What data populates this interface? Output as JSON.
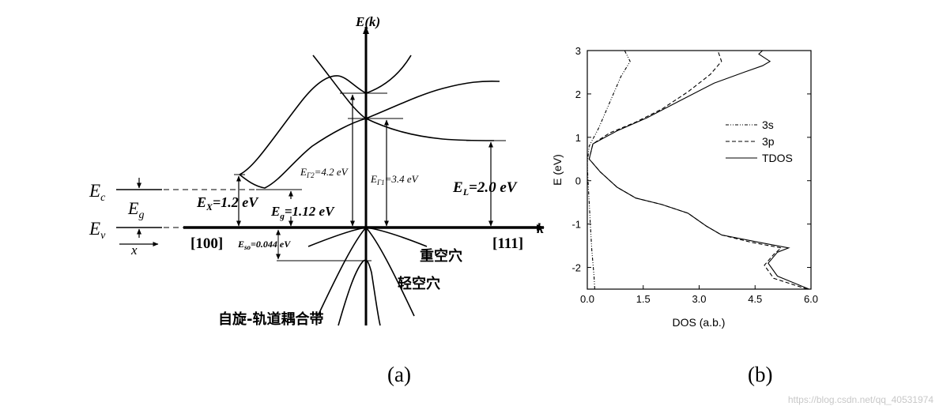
{
  "panel_a": {
    "caption": "(a)",
    "axis_y_label": "E(k)",
    "axis_x_label": "k",
    "dir_left": "[100]",
    "dir_right": "[111]",
    "ec": "E",
    "ec_sub": "c",
    "ev": "E",
    "ev_sub": "v",
    "eg": "E",
    "eg_sub": "g",
    "x_arrow_label": "x",
    "ex_label": "E",
    "ex_sub": "X",
    "ex_val": "=1.2 eV",
    "eg2_label": "E",
    "eg2_sub": "g",
    "eg2_val": "=1.12 eV",
    "eso_label": "E",
    "eso_sub": "so",
    "eso_val": "=0.044 eV",
    "eg2val_label": "E",
    "eg2val_sub": "Γ2",
    "eg2val_val": "=4.2 eV",
    "eg1_label": "E",
    "eg1_sub": "Γ1",
    "eg1_val": "=3.4 eV",
    "el_label": "E",
    "el_sub": "L",
    "el_val": "=2.0 eV",
    "heavy_hole": "重空穴",
    "light_hole": "轻空穴",
    "split_off": "自旋-轨道耦合带"
  },
  "panel_b": {
    "caption": "(b)",
    "chart_data": {
      "type": "line",
      "xlabel": "DOS (a.b.)",
      "ylabel": "E (eV)",
      "xlim": [
        0,
        6
      ],
      "ylim": [
        -2.5,
        3
      ],
      "xticks": [
        "0.0",
        "1.5",
        "3.0",
        "4.5",
        "6.0"
      ],
      "yticks": [
        "3",
        "2",
        "1",
        "0",
        "-1",
        "-2"
      ],
      "legend_position": "right",
      "series": [
        {
          "name": "3s",
          "style": "dash-dot-dot",
          "points": [
            [
              0.2,
              -2.5
            ],
            [
              0.18,
              -2.2
            ],
            [
              0.12,
              -1.6
            ],
            [
              0.08,
              -1.0
            ],
            [
              0.05,
              -0.5
            ],
            [
              0.02,
              0.0
            ],
            [
              0.0,
              0.4
            ],
            [
              0.05,
              0.8
            ],
            [
              0.3,
              1.2
            ],
            [
              0.6,
              1.8
            ],
            [
              0.9,
              2.4
            ],
            [
              1.15,
              2.75
            ],
            [
              1.0,
              3.0
            ]
          ]
        },
        {
          "name": "3p",
          "style": "dashed",
          "points": [
            [
              5.9,
              -2.5
            ],
            [
              5.0,
              -2.25
            ],
            [
              4.75,
              -1.95
            ],
            [
              5.0,
              -1.7
            ],
            [
              5.2,
              -1.55
            ],
            [
              4.4,
              -1.42
            ],
            [
              3.6,
              -1.25
            ],
            [
              3.2,
              -1.05
            ],
            [
              2.7,
              -0.75
            ],
            [
              2.0,
              -0.55
            ],
            [
              1.3,
              -0.4
            ],
            [
              0.8,
              -0.15
            ],
            [
              0.35,
              0.2
            ],
            [
              0.05,
              0.5
            ],
            [
              0.15,
              0.85
            ],
            [
              0.6,
              1.1
            ],
            [
              1.3,
              1.35
            ],
            [
              2.0,
              1.65
            ],
            [
              2.7,
              2.05
            ],
            [
              3.3,
              2.45
            ],
            [
              3.6,
              2.75
            ],
            [
              3.5,
              3.0
            ]
          ]
        },
        {
          "name": "TDOS",
          "style": "solid",
          "points": [
            [
              5.95,
              -2.5
            ],
            [
              5.1,
              -2.2
            ],
            [
              4.85,
              -1.9
            ],
            [
              5.1,
              -1.65
            ],
            [
              5.4,
              -1.55
            ],
            [
              4.6,
              -1.42
            ],
            [
              3.6,
              -1.25
            ],
            [
              3.2,
              -1.05
            ],
            [
              2.7,
              -0.75
            ],
            [
              2.0,
              -0.55
            ],
            [
              1.3,
              -0.4
            ],
            [
              0.8,
              -0.15
            ],
            [
              0.35,
              0.2
            ],
            [
              0.05,
              0.5
            ],
            [
              0.15,
              0.85
            ],
            [
              0.8,
              1.15
            ],
            [
              1.6,
              1.45
            ],
            [
              2.5,
              1.85
            ],
            [
              3.4,
              2.25
            ],
            [
              4.2,
              2.5
            ],
            [
              4.7,
              2.65
            ],
            [
              4.9,
              2.75
            ],
            [
              4.6,
              2.92
            ],
            [
              4.7,
              3.0
            ]
          ]
        }
      ]
    }
  },
  "watermark": "https://blog.csdn.net/qq_40531974"
}
